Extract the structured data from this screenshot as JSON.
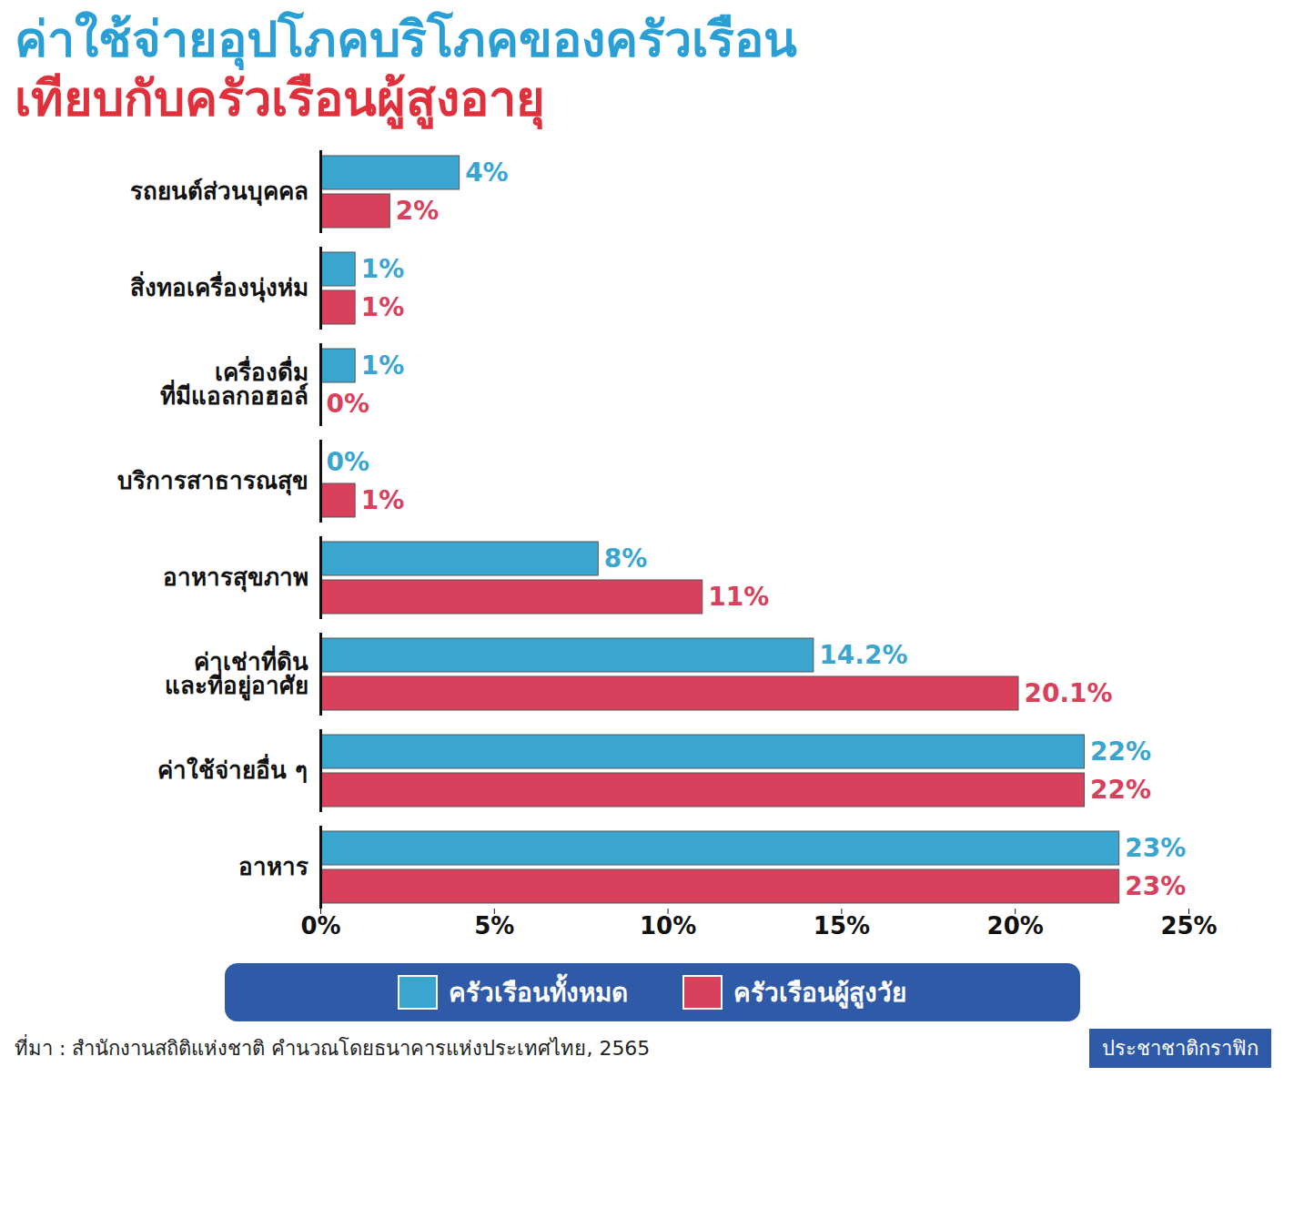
{
  "chart_data": {
    "type": "bar",
    "orientation": "horizontal",
    "title": "ค่าใช้จ่ายอุปโภคบริโภคของครัวเรือน",
    "subtitle": "เทียบกับครัวเรือนผู้สูงอายุ",
    "categories": [
      "รถยนต์ส่วนบุคคล",
      "สิ่งทอเครื่องนุ่งห่ม",
      "เครื่องดื่ม\nที่มีแอลกอฮอล์",
      "บริการสาธารณสุข",
      "อาหารสุขภาพ",
      "ค่าเช่าที่ดิน\nและที่อยู่อาศัย",
      "ค่าใช้จ่ายอื่น ๆ",
      "อาหาร"
    ],
    "series": [
      {
        "name": "ครัวเรือนทั้งหมด",
        "color": "#3aa6cf",
        "values": [
          4,
          1,
          1,
          0,
          8,
          14.2,
          22,
          23
        ],
        "value_labels": [
          "4%",
          "1%",
          "1%",
          "0%",
          "8%",
          "14.2%",
          "22%",
          "23%"
        ]
      },
      {
        "name": "ครัวเรือนผู้สูงวัย",
        "color": "#d9405c",
        "values": [
          2,
          1,
          0,
          1,
          11,
          20.1,
          22,
          23
        ],
        "value_labels": [
          "2%",
          "1%",
          "0%",
          "1%",
          "11%",
          "20.1%",
          "22%",
          "23%"
        ]
      }
    ],
    "xlim": [
      0,
      25
    ],
    "xticks": [
      {
        "value": 0,
        "label": "0%"
      },
      {
        "value": 5,
        "label": "5%"
      },
      {
        "value": 10,
        "label": "10%"
      },
      {
        "value": 15,
        "label": "15%"
      },
      {
        "value": 20,
        "label": "20%"
      },
      {
        "value": 25,
        "label": "25%"
      }
    ],
    "data_labels": true,
    "grid": false,
    "legend": "bottom",
    "caption": "ที่มา : สำนักงานสถิติแห่งชาติ คำนวณโดยธนาคารแห่งประเทศไทย, 2565",
    "credit": "ประชาชาติกราฟิก"
  }
}
